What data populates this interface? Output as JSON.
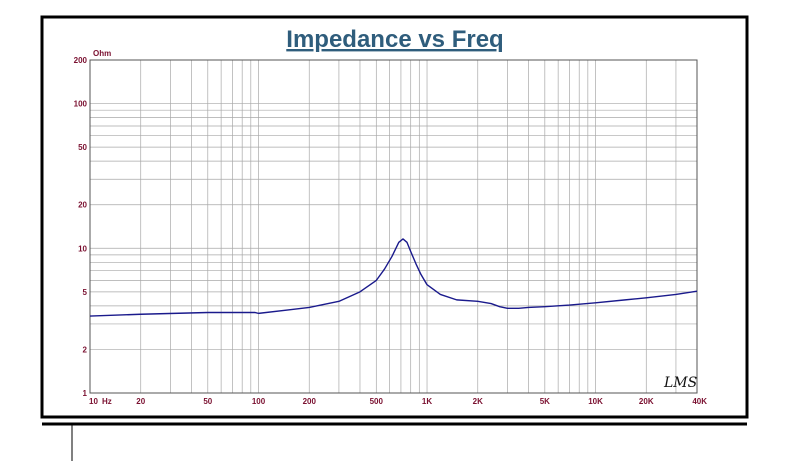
{
  "chart_data": {
    "type": "line",
    "title": "Impedance vs Freq",
    "ylabel_unit": "Ohm",
    "x_scale": "log",
    "y_scale": "log",
    "xlim": [
      10,
      40000
    ],
    "ylim": [
      1,
      200
    ],
    "grid": true,
    "x_ticks": [
      {
        "value": 10,
        "label": "10"
      },
      {
        "value": 20,
        "label": "20"
      },
      {
        "value": 50,
        "label": "50"
      },
      {
        "value": 100,
        "label": "100"
      },
      {
        "value": 200,
        "label": "200"
      },
      {
        "value": 500,
        "label": "500"
      },
      {
        "value": 1000,
        "label": "1K"
      },
      {
        "value": 2000,
        "label": "2K"
      },
      {
        "value": 5000,
        "label": "5K"
      },
      {
        "value": 10000,
        "label": "10K"
      },
      {
        "value": 20000,
        "label": "20K"
      },
      {
        "value": 40000,
        "label": "40K"
      }
    ],
    "x_unit_label": "Hz",
    "y_ticks": [
      {
        "value": 1,
        "label": "1"
      },
      {
        "value": 2,
        "label": "2"
      },
      {
        "value": 5,
        "label": "5"
      },
      {
        "value": 10,
        "label": "10"
      },
      {
        "value": 20,
        "label": "20"
      },
      {
        "value": 50,
        "label": "50"
      },
      {
        "value": 100,
        "label": "100"
      },
      {
        "value": 200,
        "label": "200"
      }
    ],
    "series": [
      {
        "color": "#1a1a8c",
        "x": [
          10,
          20,
          50,
          95,
          100,
          150,
          200,
          300,
          400,
          500,
          560,
          620,
          680,
          720,
          760,
          800,
          860,
          920,
          1000,
          1200,
          1500,
          2000,
          2400,
          2700,
          3000,
          3500,
          4000,
          5000,
          7000,
          10000,
          15000,
          20000,
          30000,
          40000
        ],
        "y": [
          3.4,
          3.5,
          3.6,
          3.6,
          3.55,
          3.75,
          3.9,
          4.3,
          5.0,
          6.0,
          7.2,
          8.8,
          11.0,
          11.6,
          11.0,
          9.5,
          7.8,
          6.6,
          5.6,
          4.8,
          4.4,
          4.3,
          4.15,
          3.95,
          3.85,
          3.85,
          3.9,
          3.95,
          4.05,
          4.2,
          4.4,
          4.55,
          4.8,
          5.05
        ]
      }
    ]
  },
  "logo_text": "LMS"
}
